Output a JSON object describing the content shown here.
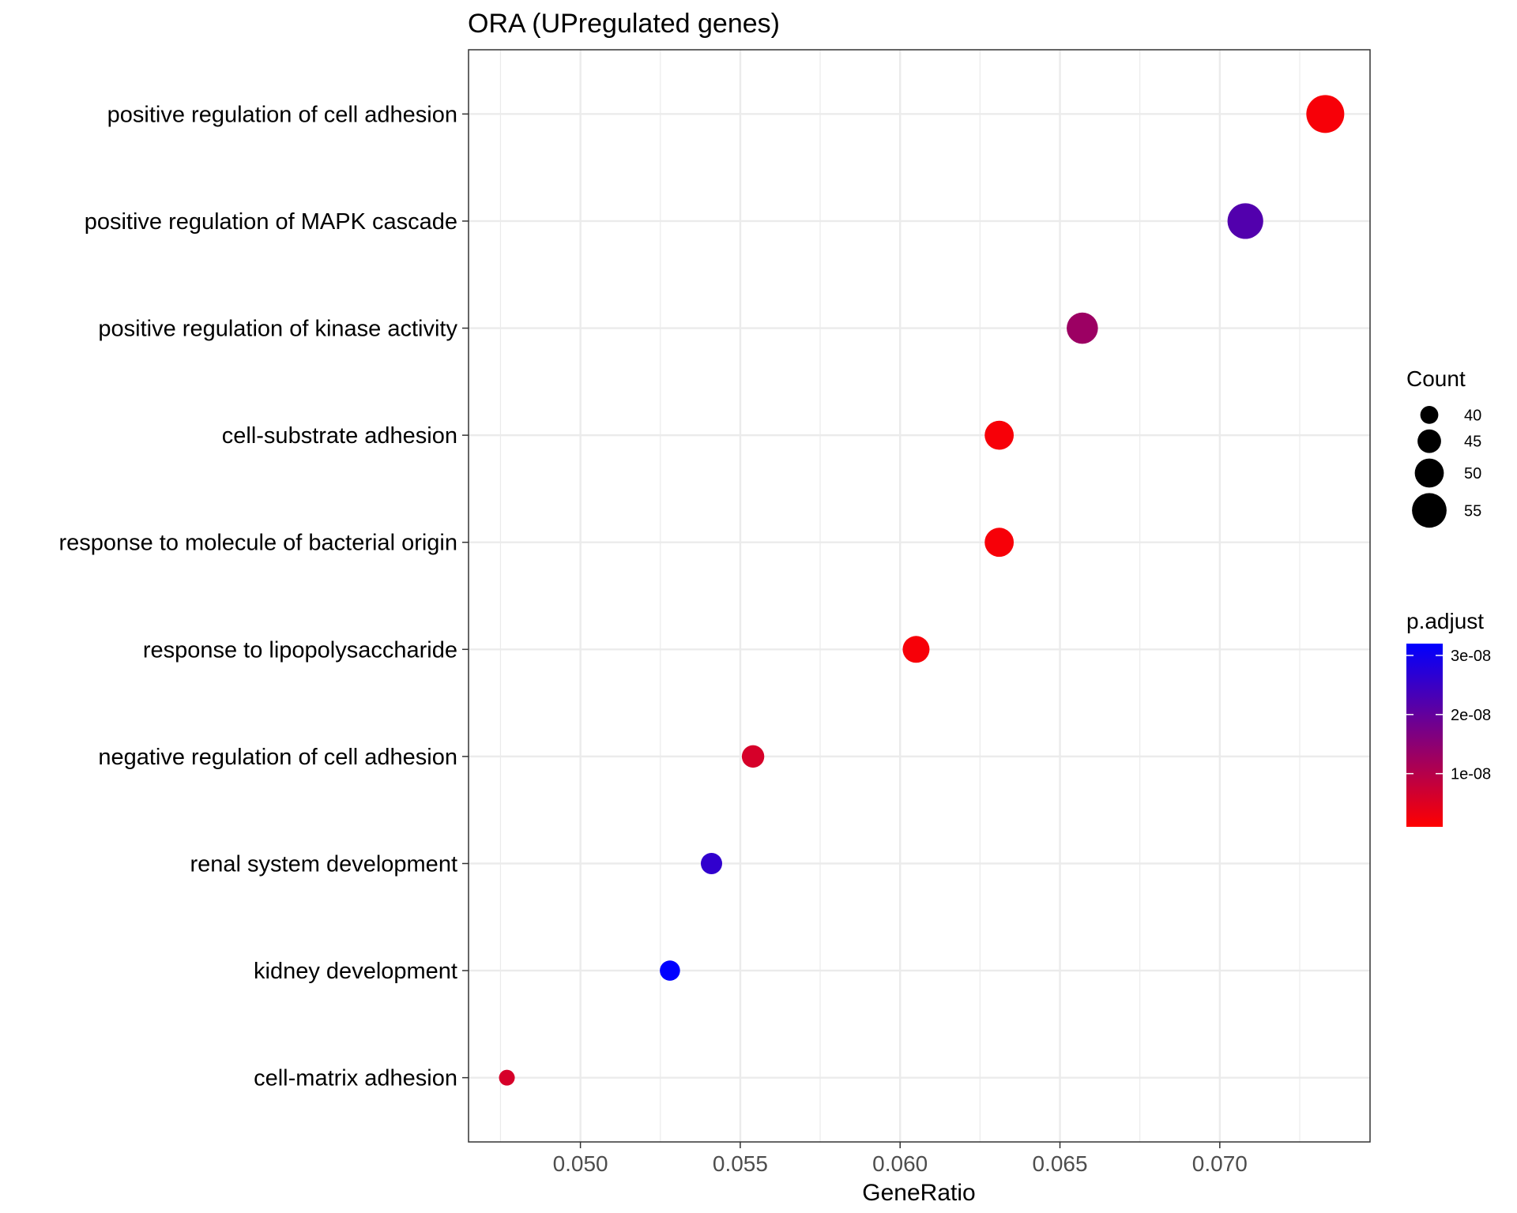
{
  "chart_data": {
    "type": "scatter",
    "title": "ORA (UPregulated genes)",
    "xlabel": "GeneRatio",
    "ylabel": "",
    "xlim": [
      0.0465,
      0.0747
    ],
    "x_ticks": [
      "0.050",
      "0.055",
      "0.060",
      "0.065",
      "0.070"
    ],
    "x_tick_values": [
      0.05,
      0.055,
      0.06,
      0.065,
      0.07
    ],
    "grid": true,
    "points": [
      {
        "term": "positive regulation of cell adhesion",
        "gene_ratio": 0.0733,
        "count": 58,
        "p_adjust": 2e-09
      },
      {
        "term": "positive regulation of MAPK cascade",
        "gene_ratio": 0.0708,
        "count": 56,
        "p_adjust": 2.2e-08
      },
      {
        "term": "positive regulation of kinase activity",
        "gene_ratio": 0.0657,
        "count": 52,
        "p_adjust": 1.3e-08
      },
      {
        "term": "cell-substrate adhesion",
        "gene_ratio": 0.0631,
        "count": 50,
        "p_adjust": 2e-09
      },
      {
        "term": "response to molecule of bacterial origin",
        "gene_ratio": 0.0631,
        "count": 50,
        "p_adjust": 2e-09
      },
      {
        "term": "response to lipopolysaccharide",
        "gene_ratio": 0.0605,
        "count": 48,
        "p_adjust": 2e-09
      },
      {
        "term": "negative regulation of cell adhesion",
        "gene_ratio": 0.0554,
        "count": 44,
        "p_adjust": 6e-09
      },
      {
        "term": "renal system development",
        "gene_ratio": 0.0541,
        "count": 43,
        "p_adjust": 2.6e-08
      },
      {
        "term": "kidney development",
        "gene_ratio": 0.0528,
        "count": 42,
        "p_adjust": 3.2e-08
      },
      {
        "term": "cell-matrix adhesion",
        "gene_ratio": 0.0477,
        "count": 38,
        "p_adjust": 6e-09
      }
    ],
    "legend": {
      "placement": "right",
      "size_title": "Count",
      "size_entries": [
        {
          "label": "40",
          "value": 40
        },
        {
          "label": "45",
          "value": 45
        },
        {
          "label": "50",
          "value": 50
        },
        {
          "label": "55",
          "value": 55
        }
      ],
      "color_title": "p.adjust",
      "color_range": [
        1e-09,
        3.2e-08
      ],
      "color_ticks": [
        {
          "label": "3e-08",
          "value": 3e-08
        },
        {
          "label": "2e-08",
          "value": 2e-08
        },
        {
          "label": "1e-08",
          "value": 1e-08
        }
      ],
      "color_low": "#ff0000",
      "color_high": "#0000ff"
    }
  }
}
